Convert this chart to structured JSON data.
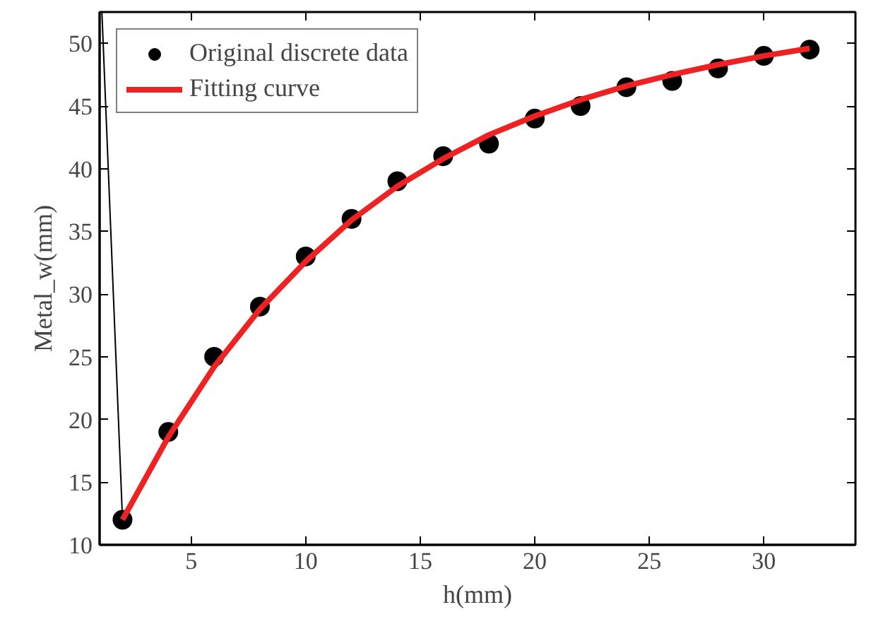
{
  "chart_data": {
    "type": "scatter",
    "xlabel": "h(mm)",
    "ylabel": "Metal_w(mm)",
    "xlim": [
      1,
      34
    ],
    "ylim": [
      10,
      52.5
    ],
    "xticks": [
      5,
      10,
      15,
      20,
      25,
      30
    ],
    "yticks": [
      10,
      15,
      20,
      25,
      30,
      35,
      40,
      45,
      50
    ],
    "legend": "top left",
    "grid": false,
    "series": [
      {
        "name": "Original discrete data",
        "marker": "circle",
        "color": "#000000",
        "x": [
          2,
          4,
          6,
          8,
          10,
          12,
          14,
          16,
          18,
          20,
          22,
          24,
          26,
          28,
          30,
          32
        ],
        "values": [
          12,
          19,
          25,
          29,
          33,
          36,
          39,
          41,
          42,
          44,
          45,
          46.5,
          47,
          48,
          49,
          49.5
        ]
      },
      {
        "type": "line",
        "color": "#000000",
        "x": [
          1.1,
          2
        ],
        "values": [
          52.5,
          12
        ]
      },
      {
        "name": "Fitting curve",
        "type": "line",
        "color": "#ee2222",
        "x": [
          2,
          4,
          6,
          8,
          10,
          12,
          14,
          16,
          18,
          20,
          22,
          24,
          26,
          28,
          30,
          32
        ],
        "values": [
          12,
          18.6,
          24.2,
          28.8,
          32.6,
          35.9,
          38.6,
          40.8,
          42.7,
          44.2,
          45.5,
          46.6,
          47.5,
          48.3,
          49.0,
          49.6
        ]
      }
    ]
  }
}
